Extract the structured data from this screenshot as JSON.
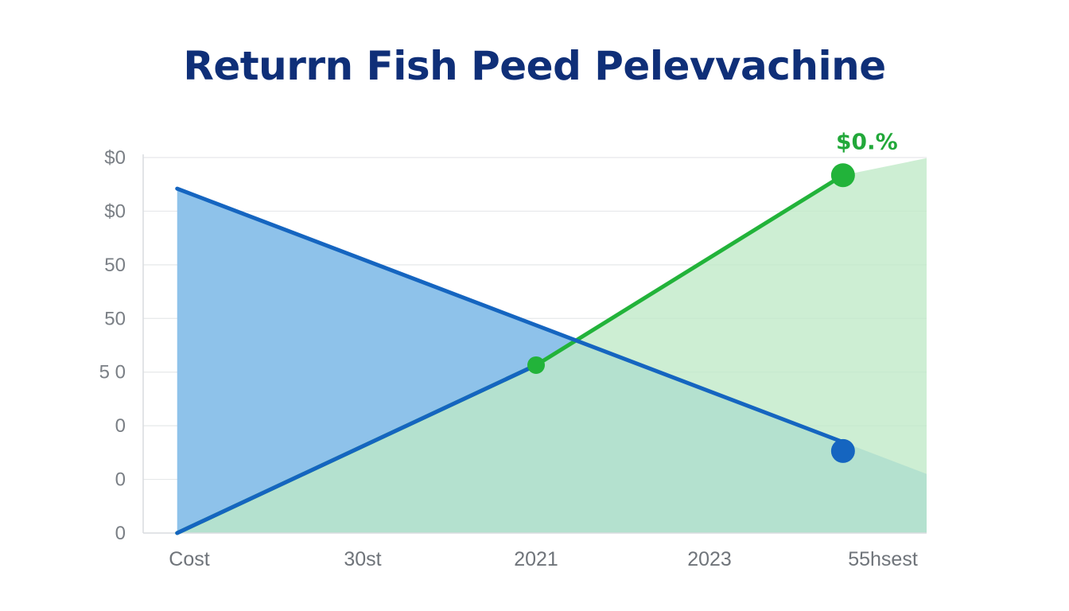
{
  "chart_data": {
    "type": "area",
    "title": "Returrn Fish Peed Pelevvachine",
    "xlabel": "",
    "ylabel": "",
    "categories": [
      "Cost",
      "30st",
      "2021",
      "2023",
      "55hsest"
    ],
    "y_tick_labels": [
      "0",
      "0",
      "0",
      "5 0",
      "50",
      "50",
      "$0",
      "$0"
    ],
    "ylim": [
      0,
      7
    ],
    "grid": true,
    "series": [
      {
        "color": "#1565c0",
        "fill_color": "#8ec2ea",
        "x": [
          -0.07,
          4.27
        ],
        "values": [
          6.42,
          1.08
        ],
        "markers": [
          {
            "x": 3.77,
            "y": 1.53
          }
        ]
      },
      {
        "color": "#22b33a",
        "fill_color": "#bfe9c6",
        "x": [
          -0.07,
          2.0,
          3.77,
          4.27
        ],
        "values": [
          0.0,
          3.13,
          6.67,
          7.0
        ],
        "markers": [
          {
            "x": 2.0,
            "y": 3.13
          },
          {
            "x": 3.77,
            "y": 6.67
          }
        ]
      }
    ],
    "annotations": [
      {
        "text": "$0.%",
        "x": 3.77,
        "y": 6.67,
        "color": "#22a83a"
      }
    ]
  }
}
